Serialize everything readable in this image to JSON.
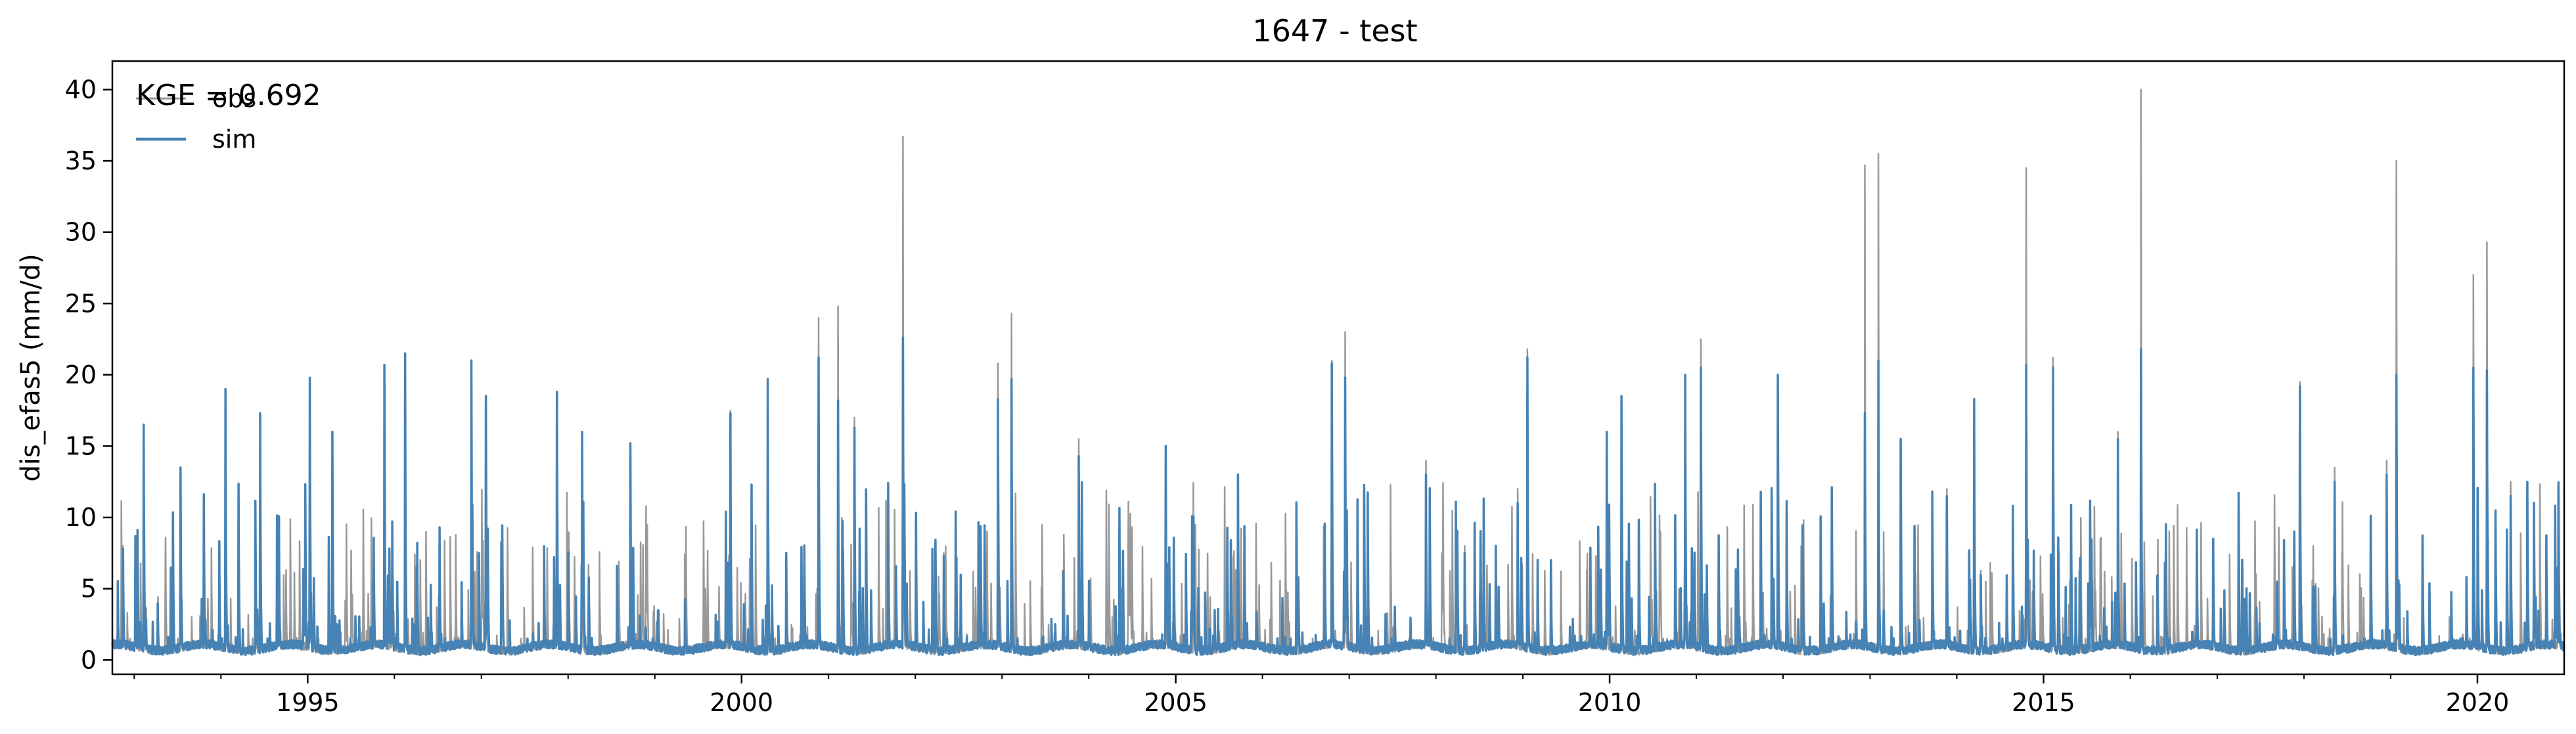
{
  "chart_data": {
    "type": "line",
    "title": "1647 - test",
    "xlabel": "",
    "ylabel": "dis_efas5 (mm/d)",
    "xlim": [
      "1992-10-01",
      "2020-12-31"
    ],
    "ylim": [
      -1,
      42
    ],
    "x_ticks": [
      "1995",
      "2000",
      "2005",
      "2010",
      "2015",
      "2020"
    ],
    "y_ticks": [
      0,
      5,
      10,
      15,
      20,
      25,
      30,
      35,
      40
    ],
    "grid": false,
    "legend": {
      "location": "top-left",
      "entries": [
        "obs",
        "sim"
      ]
    },
    "annotation": "KGE = 0.692",
    "series": [
      {
        "name": "obs",
        "color": "#999999",
        "linewidth": "thin",
        "peaks": [
          [
            "1992-11-15",
            8
          ],
          [
            "1993-02-10",
            16.2
          ],
          [
            "1993-07-15",
            13.2
          ],
          [
            "1994-01-20",
            19
          ],
          [
            "1994-06-15",
            17
          ],
          [
            "1995-01-10",
            19.5
          ],
          [
            "1995-04-15",
            16
          ],
          [
            "1995-11-20",
            20.5
          ],
          [
            "1996-02-15",
            21
          ],
          [
            "1996-11-20",
            21
          ],
          [
            "1997-01-20",
            18.5
          ],
          [
            "1997-11-15",
            18.5
          ],
          [
            "1998-03-01",
            16
          ],
          [
            "1998-09-20",
            15
          ],
          [
            "1999-11-15",
            17.5
          ],
          [
            "2000-04-20",
            19.5
          ],
          [
            "2000-11-20",
            24
          ],
          [
            "2001-02-10",
            24.8
          ],
          [
            "2001-04-20",
            17
          ],
          [
            "2001-11-10",
            36.7
          ],
          [
            "2002-05-01",
            7.5
          ],
          [
            "2002-12-15",
            20.8
          ],
          [
            "2003-02-10",
            24.3
          ],
          [
            "2003-11-20",
            15.5
          ],
          [
            "2004-11-20",
            15
          ],
          [
            "2005-09-20",
            13
          ],
          [
            "2006-10-20",
            21
          ],
          [
            "2006-12-15",
            23
          ],
          [
            "2007-11-20",
            14
          ],
          [
            "2008-05-01",
            8
          ],
          [
            "2008-12-10",
            12
          ],
          [
            "2009-01-20",
            21.8
          ],
          [
            "2009-12-20",
            16
          ],
          [
            "2010-02-20",
            18.5
          ],
          [
            "2010-11-15",
            20
          ],
          [
            "2011-01-20",
            22.5
          ],
          [
            "2011-12-10",
            20
          ],
          [
            "2012-12-10",
            34.7
          ],
          [
            "2013-02-05",
            35.5
          ],
          [
            "2013-05-10",
            15.5
          ],
          [
            "2013-11-20",
            12
          ],
          [
            "2014-03-15",
            18
          ],
          [
            "2014-10-20",
            34.5
          ],
          [
            "2015-02-10",
            21.2
          ],
          [
            "2015-11-10",
            16
          ],
          [
            "2016-02-15",
            40
          ],
          [
            "2016-12-15",
            8
          ],
          [
            "2017-12-15",
            19.5
          ],
          [
            "2018-05-10",
            13.5
          ],
          [
            "2018-12-15",
            14
          ],
          [
            "2019-01-25",
            35
          ],
          [
            "2019-12-15",
            27
          ],
          [
            "2020-02-10",
            29.3
          ],
          [
            "2020-05-20",
            12.5
          ],
          [
            "2020-12-10",
            5
          ]
        ]
      },
      {
        "name": "sim",
        "color": "#4682b4",
        "linewidth": "regular",
        "peaks": [
          [
            "1992-11-15",
            7.8
          ],
          [
            "1993-02-10",
            16.5
          ],
          [
            "1993-07-15",
            13.5
          ],
          [
            "1994-01-20",
            19
          ],
          [
            "1994-06-15",
            17.3
          ],
          [
            "1995-01-10",
            19.8
          ],
          [
            "1995-04-15",
            16
          ],
          [
            "1995-11-20",
            20.7
          ],
          [
            "1996-02-15",
            21.5
          ],
          [
            "1996-11-20",
            21
          ],
          [
            "1997-01-20",
            18.5
          ],
          [
            "1997-11-15",
            18.8
          ],
          [
            "1998-03-01",
            16
          ],
          [
            "1998-09-20",
            15.2
          ],
          [
            "1999-11-15",
            17.3
          ],
          [
            "2000-04-20",
            19.7
          ],
          [
            "2000-11-20",
            21.2
          ],
          [
            "2001-02-10",
            18.2
          ],
          [
            "2001-04-20",
            16.3
          ],
          [
            "2001-11-10",
            22.6
          ],
          [
            "2002-05-01",
            7.3
          ],
          [
            "2002-12-15",
            18.3
          ],
          [
            "2003-02-10",
            19.7
          ],
          [
            "2003-11-20",
            14.3
          ],
          [
            "2004-11-20",
            15
          ],
          [
            "2005-09-20",
            13
          ],
          [
            "2006-10-20",
            20.8
          ],
          [
            "2006-12-15",
            19.8
          ],
          [
            "2007-11-20",
            13
          ],
          [
            "2008-05-01",
            7.5
          ],
          [
            "2008-12-10",
            11
          ],
          [
            "2009-01-20",
            21.2
          ],
          [
            "2009-12-20",
            16
          ],
          [
            "2010-02-20",
            18.5
          ],
          [
            "2010-11-15",
            20
          ],
          [
            "2011-01-20",
            20.5
          ],
          [
            "2011-12-10",
            20
          ],
          [
            "2012-12-10",
            17.3
          ],
          [
            "2013-02-05",
            21
          ],
          [
            "2013-05-10",
            15.5
          ],
          [
            "2013-11-20",
            11.5
          ],
          [
            "2014-03-15",
            18.3
          ],
          [
            "2014-10-20",
            20.7
          ],
          [
            "2015-02-10",
            20.5
          ],
          [
            "2015-11-10",
            15.5
          ],
          [
            "2016-02-15",
            21.8
          ],
          [
            "2016-12-15",
            8.5
          ],
          [
            "2017-12-15",
            19.2
          ],
          [
            "2018-05-10",
            12.5
          ],
          [
            "2018-12-15",
            13
          ],
          [
            "2019-01-25",
            20
          ],
          [
            "2019-12-15",
            20.5
          ],
          [
            "2020-02-10",
            20.3
          ],
          [
            "2020-05-20",
            11.5
          ],
          [
            "2020-12-10",
            4.5
          ]
        ]
      }
    ]
  }
}
